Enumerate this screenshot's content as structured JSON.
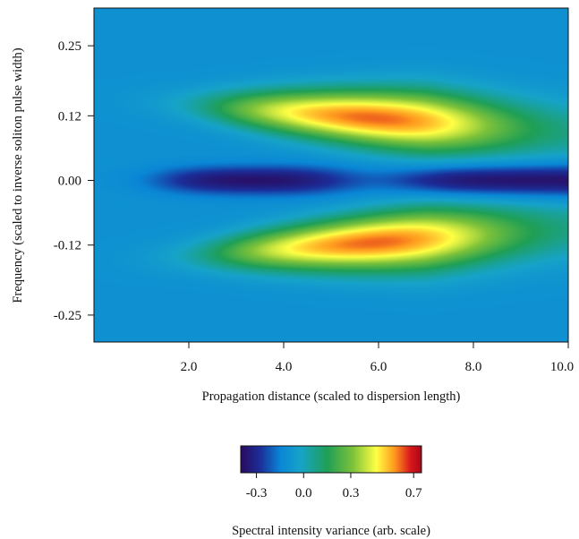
{
  "chart_data": {
    "type": "heatmap",
    "title": "",
    "xlabel": "Propagation distance (scaled to dispersion length)",
    "ylabel": "Frequency (scaled to inverse soliton pulse width)",
    "xlim": [
      0.0,
      10.0
    ],
    "ylim": [
      -0.3,
      0.32
    ],
    "x_ticks": [
      {
        "value": 2.0,
        "label": "2.0"
      },
      {
        "value": 4.0,
        "label": "4.0"
      },
      {
        "value": 6.0,
        "label": "6.0"
      },
      {
        "value": 8.0,
        "label": "8.0"
      },
      {
        "value": 10.0,
        "label": "10.0"
      }
    ],
    "y_ticks": [
      {
        "value": 0.25,
        "label": "0.25"
      },
      {
        "value": 0.12,
        "label": "0.12"
      },
      {
        "value": 0.0,
        "label": "0.00"
      },
      {
        "value": -0.12,
        "label": "-0.12"
      },
      {
        "value": -0.25,
        "label": "-0.25"
      }
    ],
    "colorbar": {
      "label": "Spectral intensity variance (arb. scale)",
      "range": [
        -0.4,
        0.75
      ],
      "ticks": [
        {
          "value": -0.3,
          "label": "-0.3"
        },
        {
          "value": 0.0,
          "label": "0.0"
        },
        {
          "value": 0.3,
          "label": "0.3"
        },
        {
          "value": 0.7,
          "label": "0.7"
        }
      ],
      "colormap": [
        "#2a0a5e",
        "#1b2f9a",
        "#0a86d6",
        "#16a3c9",
        "#1f9f55",
        "#7cc23a",
        "#ffff44",
        "#ff9a1e",
        "#d8161b",
        "#a80818"
      ]
    },
    "grid": false,
    "features": [
      {
        "kind": "peak",
        "x": 6.2,
        "y": 0.11,
        "value": 0.7
      },
      {
        "kind": "peak",
        "x": 6.2,
        "y": -0.11,
        "value": 0.7
      },
      {
        "kind": "trough",
        "x": 3.0,
        "y": 0.0,
        "value": -0.38
      },
      {
        "kind": "trough",
        "x": 9.0,
        "y": 0.0,
        "value": -0.38
      },
      {
        "kind": "local-max",
        "x": 5.9,
        "y": 0.0,
        "value": -0.05
      },
      {
        "kind": "background",
        "value": -0.1
      }
    ]
  }
}
